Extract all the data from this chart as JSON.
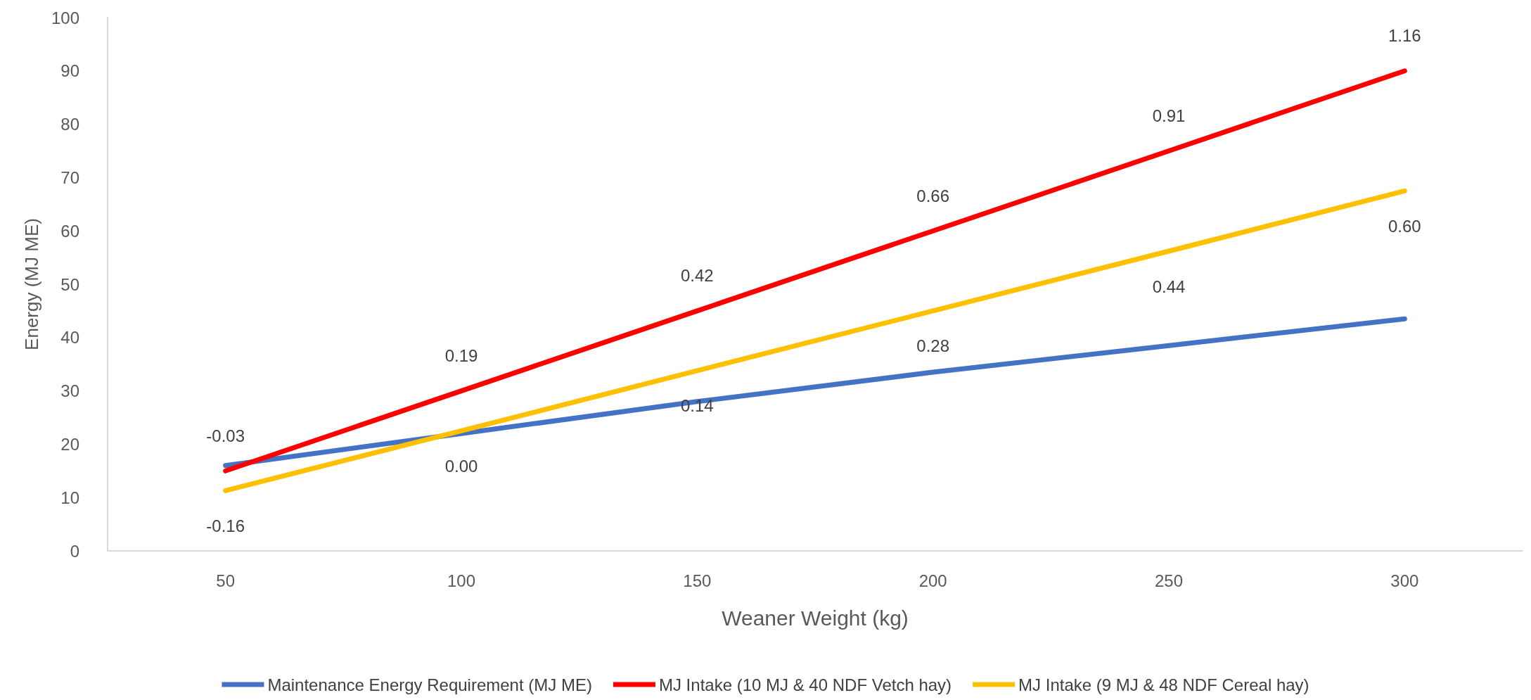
{
  "chart_data": {
    "type": "line",
    "xlabel": "Weaner Weight (kg)",
    "ylabel": "Energy (MJ ME)",
    "categories": [
      "50",
      "100",
      "150",
      "200",
      "250",
      "300"
    ],
    "series": [
      {
        "name": "Maintenance Energy Requirement (MJ ME)",
        "color": "#4472c4",
        "values": [
          16,
          22,
          28,
          33.5,
          38.5,
          43.5
        ]
      },
      {
        "name": "MJ Intake (10 MJ & 40 NDF Vetch hay)",
        "color": "#ff0000",
        "values": [
          15,
          30,
          45,
          60,
          75,
          90
        ]
      },
      {
        "name": "MJ Intake (9 MJ & 48 NDF Cereal hay)",
        "color": "#ffc000",
        "values": [
          11.3,
          22.5,
          33.8,
          45,
          56.2,
          67.5
        ]
      }
    ],
    "annotations": [
      {
        "text": "-0.03",
        "x": "50",
        "y": 15
      },
      {
        "text": "0.19",
        "x": "100",
        "y": 30
      },
      {
        "text": "0.42",
        "x": "150",
        "y": 45
      },
      {
        "text": "0.66",
        "x": "200",
        "y": 60
      },
      {
        "text": "0.91",
        "x": "250",
        "y": 75
      },
      {
        "text": "1.16",
        "x": "300",
        "y": 90
      },
      {
        "text": "-0.16",
        "x": "50",
        "y": 11.3
      },
      {
        "text": "0.00",
        "x": "100",
        "y": 22.5
      },
      {
        "text": "0.14",
        "x": "150",
        "y": 33.8
      },
      {
        "text": "0.28",
        "x": "200",
        "y": 45
      },
      {
        "text": "0.44",
        "x": "250",
        "y": 56.2
      },
      {
        "text": "0.60",
        "x": "300",
        "y": 67.5
      }
    ],
    "ylim": [
      0,
      100
    ],
    "yticks": [
      0,
      10,
      20,
      30,
      40,
      50,
      60,
      70,
      80,
      90,
      100
    ],
    "grid": false,
    "legend": "bottom",
    "marker": "none",
    "line_style": "solid"
  }
}
